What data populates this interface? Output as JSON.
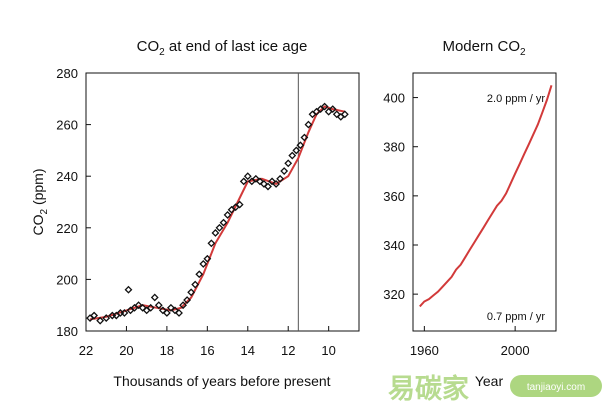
{
  "chart_data": [
    {
      "type": "scatter",
      "title_main": "CO",
      "title_sub": "2",
      "title_rest": " at end of last ice age",
      "xlabel": "Thousands of years before present",
      "ylabel_main": "CO",
      "ylabel_sub": "2",
      "ylabel_rest": " (ppm)",
      "xlim": [
        22,
        8.5
      ],
      "ylim": [
        180,
        280
      ],
      "x_ticks": [
        "22",
        "20",
        "18",
        "16",
        "14",
        "12",
        "10"
      ],
      "y_ticks": [
        "180",
        "200",
        "220",
        "240",
        "260",
        "280"
      ],
      "vertical_line_x": 11.5,
      "points": [
        [
          21.8,
          185
        ],
        [
          21.6,
          186
        ],
        [
          21.3,
          184
        ],
        [
          21.0,
          185
        ],
        [
          20.7,
          186
        ],
        [
          20.5,
          186
        ],
        [
          20.3,
          187
        ],
        [
          20.1,
          187
        ],
        [
          19.9,
          196
        ],
        [
          19.8,
          188
        ],
        [
          19.6,
          189
        ],
        [
          19.4,
          190
        ],
        [
          19.2,
          189
        ],
        [
          19.0,
          188
        ],
        [
          18.8,
          189
        ],
        [
          18.6,
          193
        ],
        [
          18.4,
          190
        ],
        [
          18.2,
          188
        ],
        [
          18.0,
          187
        ],
        [
          17.8,
          189
        ],
        [
          17.6,
          188
        ],
        [
          17.4,
          187
        ],
        [
          17.2,
          190
        ],
        [
          17.0,
          192
        ],
        [
          16.8,
          195
        ],
        [
          16.6,
          198
        ],
        [
          16.4,
          202
        ],
        [
          16.2,
          206
        ],
        [
          16.0,
          208
        ],
        [
          15.8,
          214
        ],
        [
          15.6,
          218
        ],
        [
          15.4,
          220
        ],
        [
          15.2,
          222
        ],
        [
          15.0,
          225
        ],
        [
          14.8,
          227
        ],
        [
          14.6,
          228
        ],
        [
          14.4,
          229
        ],
        [
          14.2,
          238
        ],
        [
          14.0,
          240
        ],
        [
          13.8,
          238
        ],
        [
          13.6,
          239
        ],
        [
          13.4,
          238
        ],
        [
          13.2,
          237
        ],
        [
          13.0,
          236
        ],
        [
          12.8,
          238
        ],
        [
          12.6,
          237
        ],
        [
          12.4,
          239
        ],
        [
          12.2,
          242
        ],
        [
          12.0,
          245
        ],
        [
          11.8,
          248
        ],
        [
          11.6,
          250
        ],
        [
          11.4,
          252
        ],
        [
          11.2,
          255
        ],
        [
          11.0,
          260
        ],
        [
          10.8,
          264
        ],
        [
          10.6,
          265
        ],
        [
          10.4,
          266
        ],
        [
          10.2,
          267
        ],
        [
          10.0,
          265
        ],
        [
          9.8,
          266
        ],
        [
          9.6,
          264
        ],
        [
          9.4,
          263
        ],
        [
          9.2,
          264
        ]
      ],
      "fit": [
        [
          21.8,
          184.5
        ],
        [
          21.0,
          185.5
        ],
        [
          20.0,
          188
        ],
        [
          19.2,
          190
        ],
        [
          18.5,
          189
        ],
        [
          17.8,
          188
        ],
        [
          17.3,
          189
        ],
        [
          16.8,
          193
        ],
        [
          16.2,
          202
        ],
        [
          15.6,
          214
        ],
        [
          15.0,
          222
        ],
        [
          14.5,
          230
        ],
        [
          14.0,
          238
        ],
        [
          13.3,
          239
        ],
        [
          12.6,
          237
        ],
        [
          12.0,
          240
        ],
        [
          11.5,
          247
        ],
        [
          11.0,
          257
        ],
        [
          10.6,
          264
        ],
        [
          10.2,
          267
        ],
        [
          9.8,
          266
        ],
        [
          9.2,
          265
        ]
      ]
    },
    {
      "type": "line",
      "title_main": "Modern CO",
      "title_sub": "2",
      "xlabel": "Year",
      "xlim": [
        1955,
        2018
      ],
      "ylim": [
        305,
        410
      ],
      "x_ticks": [
        "1960",
        "2000"
      ],
      "y_ticks": [
        "320",
        "340",
        "360",
        "380",
        "400"
      ],
      "annotations": [
        "2.0 ppm / yr",
        "0.7 ppm / yr"
      ],
      "series": [
        {
          "x": [
            1958,
            1960,
            1962,
            1964,
            1966,
            1968,
            1970,
            1972,
            1974,
            1976,
            1978,
            1980,
            1982,
            1984,
            1986,
            1988,
            1990,
            1992,
            1994,
            1996,
            1998,
            2000,
            2002,
            2004,
            2006,
            2008,
            2010,
            2012,
            2014,
            2016
          ],
          "values": [
            315,
            317,
            318,
            319.5,
            321,
            323,
            325,
            327,
            330,
            332,
            335,
            338,
            341,
            344,
            347,
            350,
            353,
            356,
            358,
            361,
            365,
            369,
            373,
            377,
            381,
            385,
            389,
            394,
            399,
            405
          ]
        }
      ]
    }
  ],
  "watermark": {
    "cn": "易碳家",
    "en": "tanjiaoyi.com",
    "color": "#9fcf6a"
  }
}
